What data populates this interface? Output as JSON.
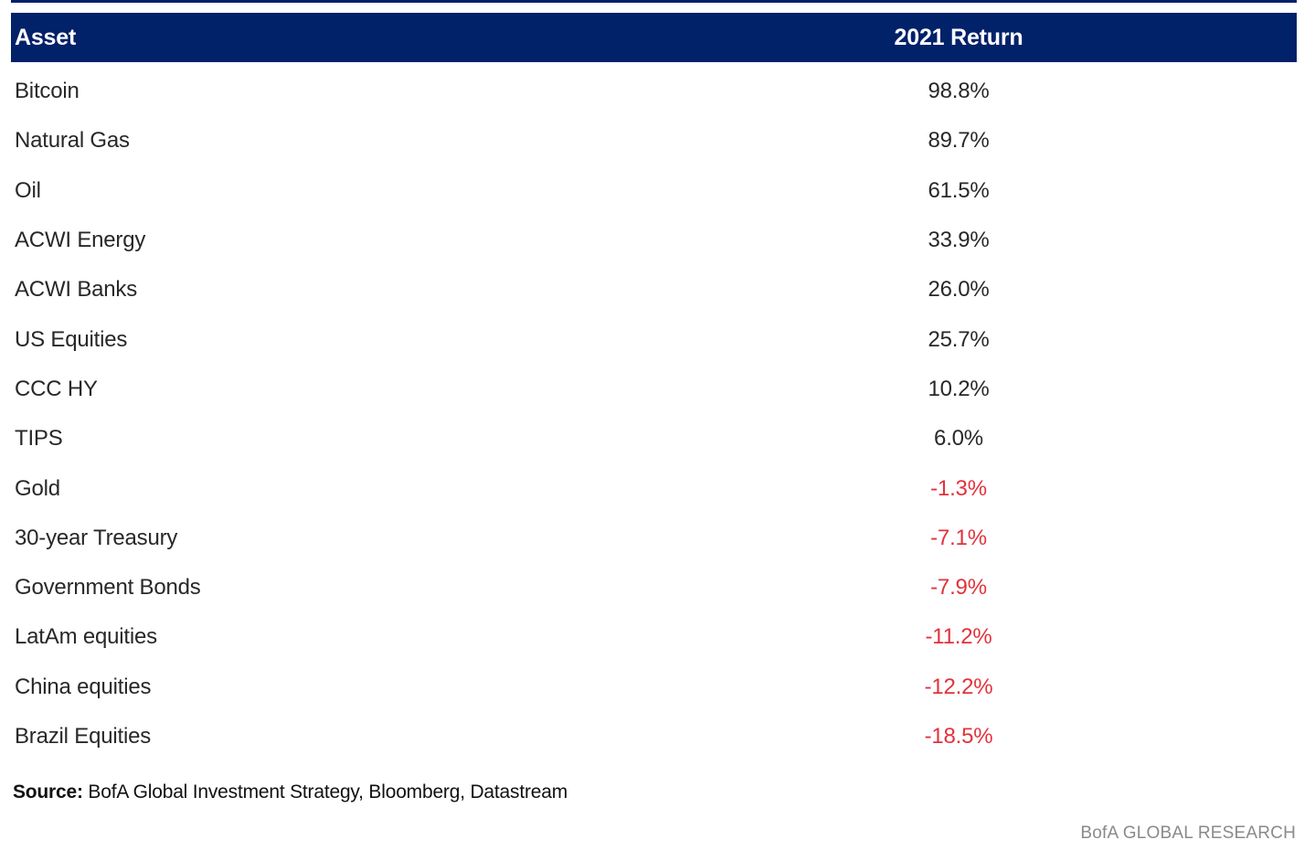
{
  "colors": {
    "header_bg": "#012169",
    "header_text": "#ffffff",
    "positive_text": "#282828",
    "negative_text": "#e2323c",
    "brand_text": "#8a8a8a"
  },
  "table": {
    "columns": [
      "Asset",
      "2021 Return"
    ],
    "rows": [
      {
        "asset": "Bitcoin",
        "return": "98.8%"
      },
      {
        "asset": "Natural Gas",
        "return": "89.7%"
      },
      {
        "asset": "Oil",
        "return": "61.5%"
      },
      {
        "asset": "ACWI Energy",
        "return": "33.9%"
      },
      {
        "asset": "ACWI Banks",
        "return": "26.0%"
      },
      {
        "asset": "US Equities",
        "return": "25.7%"
      },
      {
        "asset": "CCC HY",
        "return": "10.2%"
      },
      {
        "asset": "TIPS",
        "return": "6.0%"
      },
      {
        "asset": "Gold",
        "return": "-1.3%"
      },
      {
        "asset": "30-year Treasury",
        "return": "-7.1%"
      },
      {
        "asset": "Government Bonds",
        "return": "-7.9%"
      },
      {
        "asset": "LatAm equities",
        "return": "-11.2%"
      },
      {
        "asset": "China equities",
        "return": "-12.2%"
      },
      {
        "asset": "Brazil Equities",
        "return": "-18.5%"
      }
    ]
  },
  "chart_data": {
    "type": "table",
    "title": "",
    "columns": [
      "Asset",
      "2021 Return"
    ],
    "categories": [
      "Bitcoin",
      "Natural Gas",
      "Oil",
      "ACWI Energy",
      "ACWI Banks",
      "US Equities",
      "CCC HY",
      "TIPS",
      "Gold",
      "30-year Treasury",
      "Government Bonds",
      "LatAm equities",
      "China equities",
      "Brazil Equities"
    ],
    "values": [
      98.8,
      89.7,
      61.5,
      33.9,
      26.0,
      25.7,
      10.2,
      6.0,
      -1.3,
      -7.1,
      -7.9,
      -11.2,
      -12.2,
      -18.5
    ],
    "unit": "%",
    "negative_color": "#e2323c"
  },
  "footer": {
    "source_label": "Source:",
    "source_text": " BofA Global Investment Strategy, Bloomberg, Datastream",
    "brand": "BofA GLOBAL RESEARCH"
  }
}
